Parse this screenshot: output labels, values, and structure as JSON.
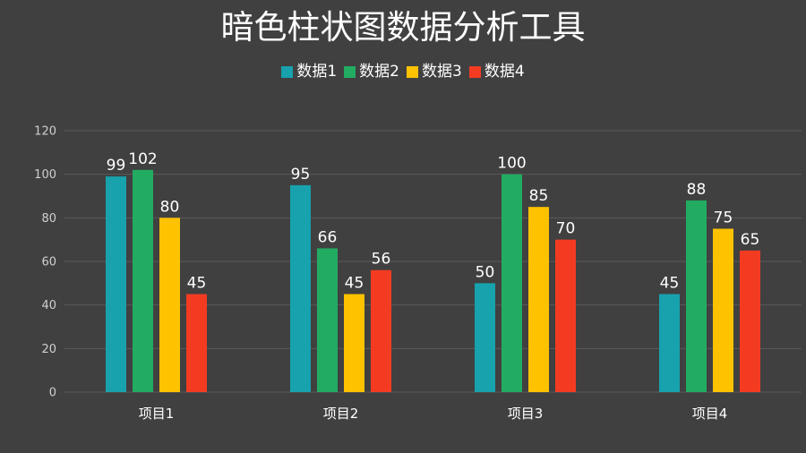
{
  "title": "暗色柱状图数据分析工具",
  "legend": [
    {
      "label": "数据1",
      "color": "#17a2ad"
    },
    {
      "label": "数据2",
      "color": "#22ac62"
    },
    {
      "label": "数据3",
      "color": "#fec200"
    },
    {
      "label": "数据4",
      "color": "#f33b22"
    }
  ],
  "chart_data": {
    "type": "bar",
    "title": "暗色柱状图数据分析工具",
    "xlabel": "",
    "ylabel": "",
    "categories": [
      "项目1",
      "项目2",
      "项目3",
      "项目4"
    ],
    "series": [
      {
        "name": "数据1",
        "color": "#17a2ad",
        "values": [
          99,
          95,
          50,
          45
        ]
      },
      {
        "name": "数据2",
        "color": "#22ac62",
        "values": [
          102,
          66,
          100,
          88
        ]
      },
      {
        "name": "数据3",
        "color": "#fec200",
        "values": [
          80,
          45,
          85,
          75
        ]
      },
      {
        "name": "数据4",
        "color": "#f33b22",
        "values": [
          45,
          56,
          70,
          65
        ]
      }
    ],
    "ylim": [
      0,
      120
    ],
    "yticks": [
      0,
      20,
      40,
      60,
      80,
      100,
      120
    ],
    "grid": true,
    "legend_position": "top",
    "data_labels": true
  }
}
